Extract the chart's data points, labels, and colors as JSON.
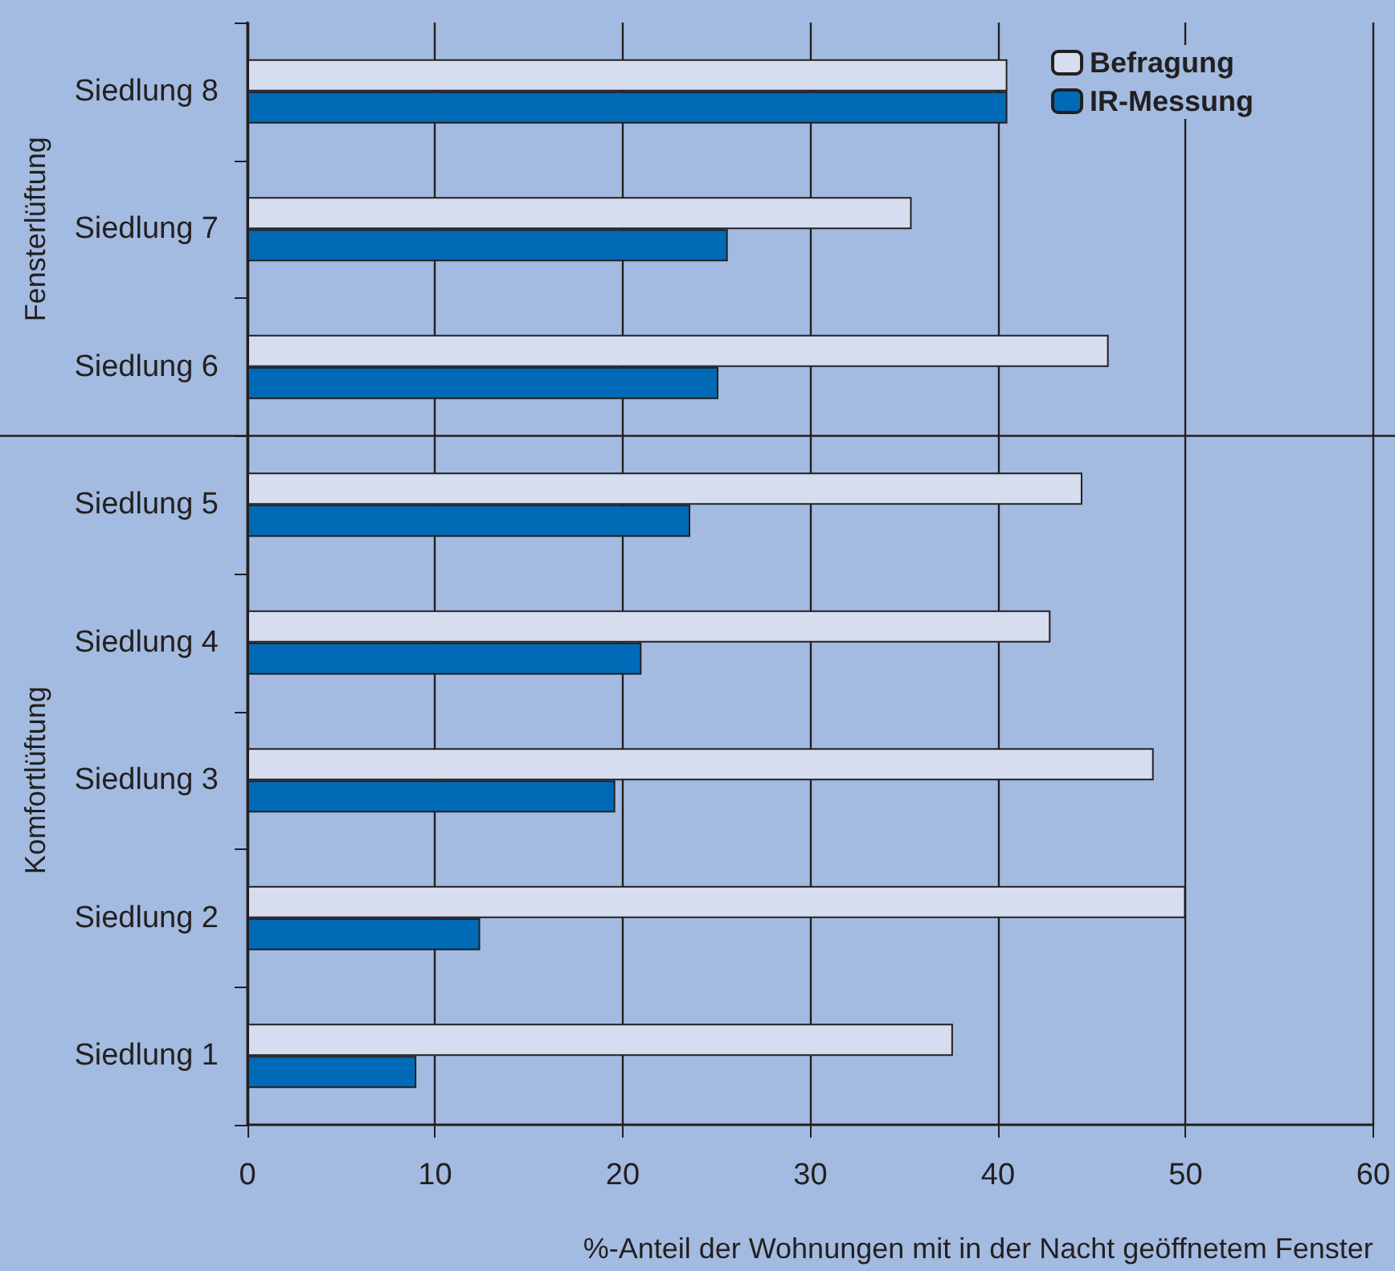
{
  "chart_data": {
    "type": "bar",
    "orientation": "horizontal",
    "xlabel": "%-Anteil der Wohnungen mit in der Nacht geöffnetem Fenster",
    "categories": [
      "Siedlung 8",
      "Siedlung 7",
      "Siedlung 6",
      "Siedlung 5",
      "Siedlung 4",
      "Siedlung 3",
      "Siedlung 2",
      "Siedlung 1"
    ],
    "series": [
      {
        "name": "Befragung",
        "color": "#d5ddef",
        "values": [
          40.5,
          35.4,
          45.9,
          44.5,
          42.8,
          48.3,
          50.0,
          37.6
        ]
      },
      {
        "name": "IR-Messung",
        "color": "#006ab7",
        "values": [
          40.5,
          25.6,
          25.1,
          23.6,
          21.0,
          19.6,
          12.4,
          9.0
        ]
      }
    ],
    "xlim": [
      0,
      60
    ],
    "xticks": [
      0,
      10,
      20,
      30,
      40,
      50,
      60
    ],
    "grid": "x",
    "legend": "top right",
    "annotations": [
      "Fensterlüftung",
      "Komfortlüftung"
    ]
  }
}
